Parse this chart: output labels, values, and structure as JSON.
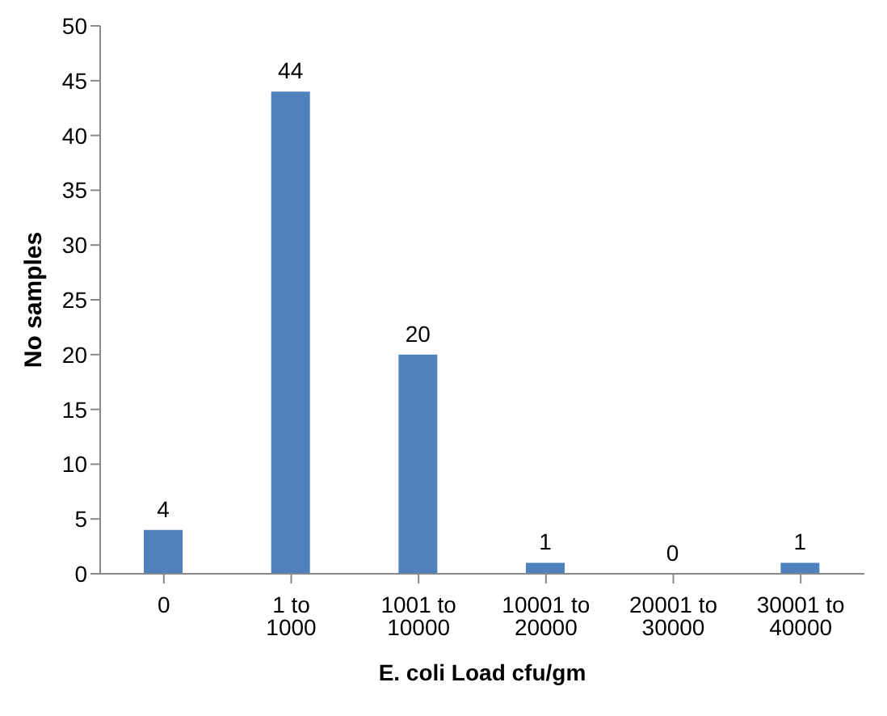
{
  "chart_data": {
    "type": "bar",
    "xlabel": "E. coli Load cfu/gm",
    "ylabel": "No samples",
    "categories": [
      "0",
      "1 to 1000",
      "1001 to 10000",
      "10001 to 20000",
      "20001 to 30000",
      "30001 to 40000"
    ],
    "values": [
      4,
      44,
      20,
      1,
      0,
      1
    ],
    "color": "#4f81bd",
    "ylim": [
      0,
      50
    ],
    "yticks": [
      0,
      5,
      10,
      15,
      20,
      25,
      30,
      35,
      40,
      45,
      50
    ],
    "grid": false,
    "data_labels": true
  }
}
